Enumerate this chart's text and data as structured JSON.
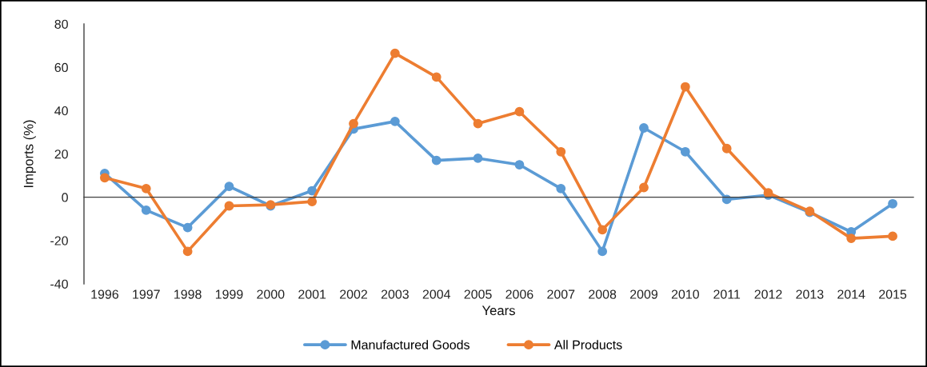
{
  "chart_data": {
    "type": "line",
    "xlabel": "Years",
    "ylabel": "Imports (%)",
    "categories": [
      "1996",
      "1997",
      "1998",
      "1999",
      "2000",
      "2001",
      "2002",
      "2003",
      "2004",
      "2005",
      "2006",
      "2007",
      "2008",
      "2009",
      "2010",
      "2011",
      "2012",
      "2013",
      "2014",
      "2015"
    ],
    "series": [
      {
        "name": "Manufactured Goods",
        "color": "#5b9bd5",
        "values": [
          11,
          -6,
          -14,
          5,
          -4,
          3,
          31.5,
          35,
          17,
          18,
          15,
          4,
          -25,
          32,
          21,
          -1,
          1,
          -7,
          -16,
          -3
        ]
      },
      {
        "name": "All Products",
        "color": "#ed7d31",
        "values": [
          9,
          4,
          -25,
          -4,
          -3.5,
          -2,
          34,
          66.5,
          55.5,
          34,
          39.5,
          21,
          -15,
          4.5,
          51,
          22.5,
          2,
          -6.5,
          -19,
          -18
        ]
      }
    ],
    "ylim": [
      -40,
      80
    ],
    "yticks": [
      -40,
      -20,
      0,
      20,
      40,
      60,
      80
    ],
    "legend": "bottom",
    "marker": "circle",
    "line_style": "solid"
  }
}
